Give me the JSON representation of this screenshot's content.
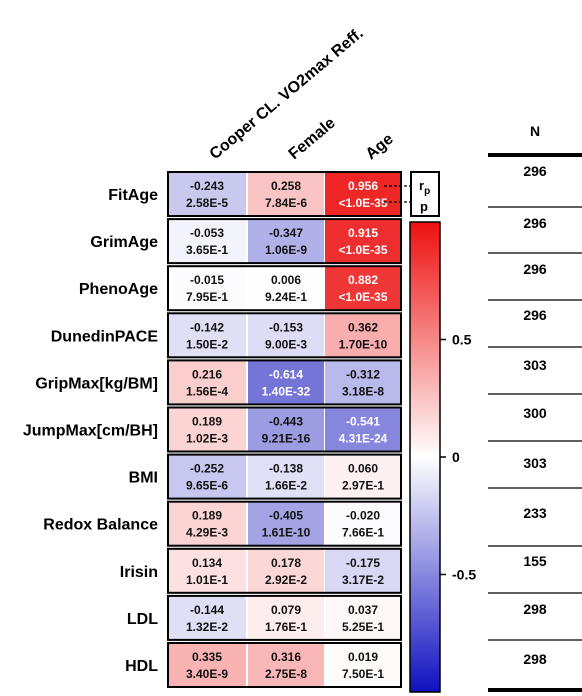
{
  "chart_data": {
    "type": "heatmap",
    "columns": [
      "Cooper CL. VO2max Reff.",
      "Female",
      "Age"
    ],
    "rows": [
      "FitAge",
      "GrimAge",
      "PhenoAge",
      "DunedinPACE",
      "GripMax[kg/BM]",
      "JumpMax[cm/BH]",
      "BMI",
      "Redox Balance",
      "Irisin",
      "LDL",
      "HDL"
    ],
    "r": [
      [
        "-0.243",
        "0.258",
        "0.956"
      ],
      [
        "-0.053",
        "-0.347",
        "0.915"
      ],
      [
        "-0.015",
        "0.006",
        "0.882"
      ],
      [
        "-0.142",
        "-0.153",
        "0.362"
      ],
      [
        "0.216",
        "-0.614",
        "-0.312"
      ],
      [
        "0.189",
        "-0.443",
        "-0.541"
      ],
      [
        "-0.252",
        "-0.138",
        "0.060"
      ],
      [
        "0.189",
        "-0.405",
        "-0.020"
      ],
      [
        "0.134",
        "0.178",
        "-0.175"
      ],
      [
        "-0.144",
        "0.079",
        "0.037"
      ],
      [
        "0.335",
        "0.316",
        "0.019"
      ]
    ],
    "p": [
      [
        "2.58E-5",
        "7.84E-6",
        "<1.0E-35"
      ],
      [
        "3.65E-1",
        "1.06E-9",
        "<1.0E-35"
      ],
      [
        "7.95E-1",
        "9.24E-1",
        "<1.0E-35"
      ],
      [
        "1.50E-2",
        "9.00E-3",
        "1.70E-10"
      ],
      [
        "1.56E-4",
        "1.40E-32",
        "3.18E-8"
      ],
      [
        "1.02E-3",
        "9.21E-16",
        "4.31E-24"
      ],
      [
        "9.65E-6",
        "1.66E-2",
        "2.97E-1"
      ],
      [
        "4.29E-3",
        "1.61E-10",
        "7.66E-1"
      ],
      [
        "1.01E-1",
        "2.92E-2",
        "3.17E-2"
      ],
      [
        "1.32E-2",
        "1.76E-1",
        "5.25E-1"
      ],
      [
        "3.40E-9",
        "2.75E-8",
        "7.50E-1"
      ]
    ],
    "n_header": "N",
    "n": [
      "296",
      "296",
      "296",
      "296",
      "303",
      "300",
      "303",
      "233",
      "155",
      "298",
      "298"
    ],
    "colorbar": {
      "min": -1,
      "max": 1,
      "ticks": [
        0.5,
        0,
        -0.5
      ],
      "tick_labels": [
        "0.5",
        "0",
        "-0.5"
      ]
    },
    "legend_key": {
      "r_base": "r",
      "r_sub": "p",
      "p_label": "p"
    },
    "colors": {
      "negative": "#1f1fbf",
      "zero": "#ffffff",
      "positive": "#ee1c1c"
    }
  }
}
